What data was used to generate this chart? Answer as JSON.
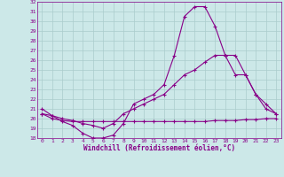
{
  "xlabel": "Windchill (Refroidissement éolien,°C)",
  "xlim": [
    -0.5,
    23.5
  ],
  "ylim": [
    18,
    32
  ],
  "xticks": [
    0,
    1,
    2,
    3,
    4,
    5,
    6,
    7,
    8,
    9,
    10,
    11,
    12,
    13,
    14,
    15,
    16,
    17,
    18,
    19,
    20,
    21,
    22,
    23
  ],
  "yticks": [
    18,
    19,
    20,
    21,
    22,
    23,
    24,
    25,
    26,
    27,
    28,
    29,
    30,
    31,
    32
  ],
  "background_color": "#cce8e8",
  "grid_color": "#aacccc",
  "line_color": "#880088",
  "line1_x": [
    0,
    1,
    2,
    3,
    4,
    5,
    6,
    7,
    8,
    9,
    10,
    11,
    12,
    13,
    14,
    15,
    16,
    17,
    18,
    19,
    20,
    21,
    22,
    23
  ],
  "line1_y": [
    21.0,
    20.3,
    19.7,
    19.3,
    18.5,
    18.0,
    18.0,
    18.3,
    19.5,
    21.5,
    22.0,
    22.5,
    23.5,
    26.5,
    30.5,
    31.5,
    31.5,
    29.5,
    26.5,
    24.5,
    24.5,
    22.5,
    21.0,
    20.5
  ],
  "line2_x": [
    0,
    1,
    2,
    3,
    4,
    5,
    6,
    7,
    8,
    9,
    10,
    11,
    12,
    13,
    14,
    15,
    16,
    17,
    18,
    19,
    20,
    21,
    22,
    23
  ],
  "line2_y": [
    20.5,
    20.3,
    20.0,
    19.8,
    19.5,
    19.3,
    19.0,
    19.5,
    20.5,
    21.0,
    21.5,
    22.0,
    22.5,
    23.5,
    24.5,
    25.0,
    25.8,
    26.5,
    26.5,
    26.5,
    24.5,
    22.5,
    21.5,
    20.5
  ],
  "line3_x": [
    0,
    1,
    2,
    3,
    4,
    5,
    6,
    7,
    8,
    9,
    10,
    11,
    12,
    13,
    14,
    15,
    16,
    17,
    18,
    19,
    20,
    21,
    22,
    23
  ],
  "line3_y": [
    20.5,
    20.0,
    19.8,
    19.7,
    19.7,
    19.7,
    19.7,
    19.7,
    19.7,
    19.7,
    19.7,
    19.7,
    19.7,
    19.7,
    19.7,
    19.7,
    19.7,
    19.8,
    19.8,
    19.8,
    19.9,
    19.9,
    20.0,
    20.0
  ]
}
